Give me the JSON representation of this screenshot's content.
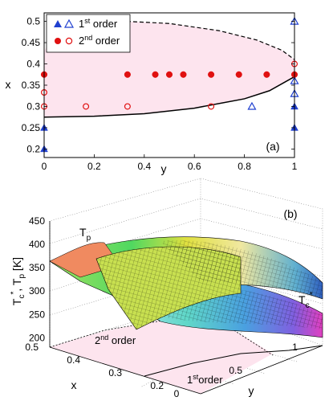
{
  "chart_data": [
    {
      "type": "scatter",
      "panel_label": "(a)",
      "xlabel": "y",
      "ylabel": "x",
      "xlim": [
        0,
        1
      ],
      "ylim": [
        0.18,
        0.52
      ],
      "xticks": [
        "0",
        "0.2",
        "0.4",
        "0.6",
        "0.8",
        "1"
      ],
      "yticks": [
        "0.2",
        "0.25",
        "0.3",
        "0.35",
        "0.4",
        "0.45",
        "0.5"
      ],
      "legend": {
        "placement": "top-left",
        "entries": [
          {
            "label": "1",
            "sup": "st",
            "rest": " order"
          },
          {
            "label": "2",
            "sup": "nd",
            "rest": " order"
          }
        ]
      },
      "colors": {
        "first_order": "#2040d0",
        "second_order": "#e01010",
        "region": "#fde4ee"
      },
      "series": [
        {
          "name": "1st order",
          "marker": "triangle-filled",
          "points": [
            [
              0,
              0.25
            ],
            [
              0,
              0.2
            ],
            [
              1,
              0.3
            ],
            [
              1,
              0.25
            ]
          ]
        },
        {
          "name": "1st order",
          "marker": "triangle-open",
          "points": [
            [
              0.83,
              0.3
            ],
            [
              1,
              0.5
            ],
            [
              1,
              0.36
            ],
            [
              1,
              0.33
            ]
          ]
        },
        {
          "name": "2nd order",
          "marker": "circle-filled",
          "points": [
            [
              0,
              0.375
            ],
            [
              0.333,
              0.375
            ],
            [
              0.444,
              0.375
            ],
            [
              0.5,
              0.375
            ],
            [
              0.556,
              0.375
            ],
            [
              0.667,
              0.375
            ],
            [
              0.778,
              0.375
            ],
            [
              0.889,
              0.375
            ],
            [
              1,
              0.375
            ]
          ]
        },
        {
          "name": "2nd order",
          "marker": "circle-open",
          "points": [
            [
              0,
              0.333
            ],
            [
              0,
              0.3
            ],
            [
              0.167,
              0.3
            ],
            [
              0.333,
              0.3
            ],
            [
              0.667,
              0.3
            ],
            [
              1,
              0.4
            ]
          ]
        }
      ],
      "boundary_lower": {
        "style": "solid",
        "points": [
          [
            0,
            0.275
          ],
          [
            0.2,
            0.277
          ],
          [
            0.4,
            0.283
          ],
          [
            0.6,
            0.296
          ],
          [
            0.8,
            0.318
          ],
          [
            0.9,
            0.337
          ],
          [
            1,
            0.37
          ]
        ]
      },
      "boundary_upper": {
        "style": "dashed",
        "points": [
          [
            0.33,
            0.5
          ],
          [
            0.5,
            0.495
          ],
          [
            0.7,
            0.478
          ],
          [
            0.85,
            0.456
          ],
          [
            0.95,
            0.432
          ],
          [
            1,
            0.41
          ]
        ]
      },
      "region_left_edge": {
        "points": [
          [
            0,
            0.275
          ],
          [
            0,
            0.43
          ],
          [
            0.03,
            0.46
          ],
          [
            0.1,
            0.485
          ],
          [
            0.2,
            0.497
          ],
          [
            0.33,
            0.5
          ]
        ]
      }
    },
    {
      "type": "surface",
      "panel_label": "(b)",
      "zlabel_main": "T",
      "zlabel_sub1": "c",
      "zlabel_sup": "*",
      "zlabel_sep": ", T",
      "zlabel_sub2": "p",
      "zlabel_unit": " [K]",
      "ylabel": "x",
      "xlabel": "y",
      "zticks": [
        "200",
        "250",
        "300",
        "350",
        "400",
        "450"
      ],
      "xticks_x": [
        "0.5",
        "0.4",
        "0.3",
        "0.2"
      ],
      "xticks_y": [
        "0",
        "0.5",
        "1"
      ],
      "zlim": [
        180,
        450
      ],
      "surface_labels": {
        "tp_main": "T",
        "tp_sub": "p",
        "tc_main": "T",
        "tc_sub": "c",
        "tc_sup": "*"
      },
      "region_labels": {
        "second_main": "2",
        "second_sup": "nd",
        "second_rest": " order",
        "first_main": "1",
        "first_sup": "st",
        "first_rest": "order"
      }
    }
  ]
}
